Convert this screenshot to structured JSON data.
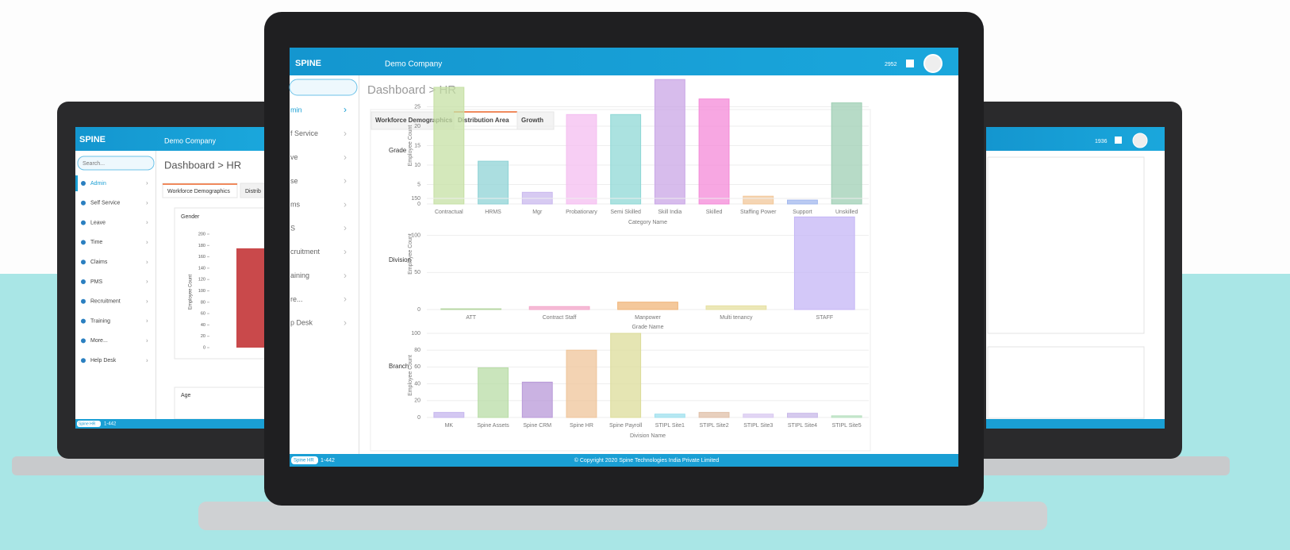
{
  "left_screen": {
    "brand": "SPINE",
    "company": "Demo Company",
    "search": "Search...",
    "menu": [
      "Admin",
      "Self Service",
      "Leave",
      "Time",
      "Claims",
      "PMS",
      "Recruitment",
      "Training",
      "More...",
      "Help Desk"
    ],
    "breadcrumb": "Dashboard > HR",
    "tabs": [
      "Workforce Demographics",
      "Distrib"
    ],
    "gender_chart": {
      "type": "bar",
      "title": "Gender",
      "y_label": "Employee Count",
      "values": [
        175
      ],
      "color": "#c9494b",
      "ylim": [
        0,
        200
      ],
      "yticks": [
        0,
        20,
        40,
        60,
        80,
        100,
        120,
        140,
        160,
        180,
        200
      ]
    },
    "age_title": "Age",
    "footer_badge": "Spine HR",
    "footer_version": "1-442"
  },
  "center_screen": {
    "brand": "SPINE",
    "company": "Demo Company",
    "counter": "2952",
    "menu": [
      "min",
      "f Service",
      "ve",
      "se",
      "ms",
      "S",
      "cruitment",
      "aining",
      "re...",
      "p Desk"
    ],
    "breadcrumb": "Dashboard > HR",
    "tabs": [
      "Workforce Demographics",
      "Distribution Area",
      "Growth"
    ],
    "charts": [
      {
        "type": "bar",
        "title": "Grade",
        "x_label": "Category Name",
        "y_label": "Employee Count",
        "categories": [
          "Contractual",
          "HRMS",
          "Mgr",
          "Probationary",
          "Semi Skilled",
          "Skill India",
          "Skilled",
          "Staffing Power",
          "Support",
          "Unskilled"
        ],
        "values": [
          30,
          11,
          3,
          23,
          23,
          32,
          27,
          2,
          1,
          26
        ],
        "colors": [
          "#c6e0a4",
          "#8fd3d6",
          "#c9b8ee",
          "#f4bdf0",
          "#8fd8d6",
          "#c9a6e6",
          "#f48ad8",
          "#f2c79a",
          "#a3b8ee",
          "#9fcfb4"
        ],
        "ylim": [
          0,
          30
        ],
        "yticks": [
          0,
          5,
          10,
          15,
          20,
          25
        ]
      },
      {
        "type": "bar",
        "title": "Division",
        "x_label": "Grade Name",
        "y_label": "Employee Count",
        "categories": [
          "ATT",
          "Contract Staff",
          "Manpower",
          "Multi tenancy",
          "STAFF"
        ],
        "values": [
          1,
          4,
          10,
          5,
          125
        ],
        "colors": [
          "#b5d6a0",
          "#f3a6c9",
          "#f0b57a",
          "#e6e0a0",
          "#c4b6f5"
        ],
        "ylim": [
          0,
          150
        ],
        "yticks": [
          0,
          50,
          100,
          150
        ]
      },
      {
        "type": "bar",
        "title": "Branch",
        "x_label": "Division Name",
        "y_label": "Employee Count",
        "categories": [
          "MK",
          "Spine Assets",
          "Spine CRM",
          "Spine HR",
          "Spine Payroll",
          "STIPL Site1",
          "STIPL Site2",
          "STIPL Site3",
          "STIPL Site4",
          "STIPL Site5"
        ],
        "values": [
          6,
          59,
          42,
          80,
          100,
          4,
          6,
          4,
          5,
          2
        ],
        "colors": [
          "#c6b6ee",
          "#b8dca6",
          "#b898d8",
          "#efc49a",
          "#dcdc9a",
          "#9fe0ee",
          "#e0c0a8",
          "#d8c8f0",
          "#c8b8e8",
          "#b8e0c0"
        ],
        "ylim": [
          0,
          100
        ],
        "yticks": [
          0,
          20,
          40,
          60,
          80,
          100
        ]
      }
    ],
    "footer_badge": "Spine HR",
    "footer_version": "1-442",
    "copyright": "© Copyright 2020 Spine Technologies India Private Limited"
  },
  "right_screen": {
    "counter": "1936"
  }
}
